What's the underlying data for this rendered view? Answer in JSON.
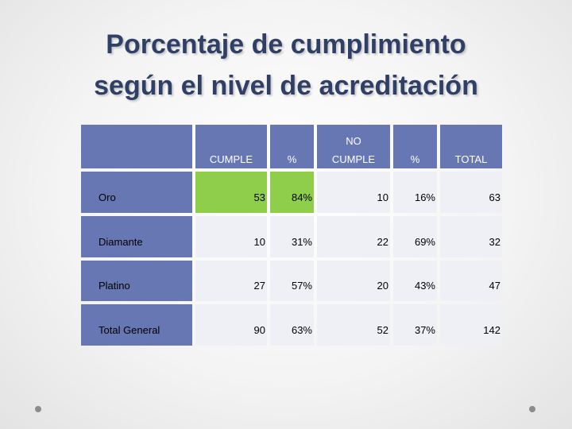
{
  "slide": {
    "title_line1": "Porcentaje de cumplimiento",
    "title_line2": "según el nivel de acreditación"
  },
  "table": {
    "header_top": "NO",
    "headers": [
      "CUMPLE",
      "%",
      "CUMPLE",
      "%",
      "TOTAL"
    ],
    "rows": [
      {
        "label": "Oro",
        "cumple": "53",
        "pct_cumple": "84%",
        "no_cumple": "10",
        "pct_no_cumple": "16%",
        "total": "63"
      },
      {
        "label": "Diamante",
        "cumple": "10",
        "pct_cumple": "31%",
        "no_cumple": "22",
        "pct_no_cumple": "69%",
        "total": "32"
      },
      {
        "label": "Platino",
        "cumple": "27",
        "pct_cumple": "57%",
        "no_cumple": "20",
        "pct_no_cumple": "43%",
        "total": "47"
      },
      {
        "label": "Total General",
        "cumple": "90",
        "pct_cumple": "63%",
        "no_cumple": "52",
        "pct_no_cumple": "37%",
        "total": "142"
      }
    ]
  },
  "colors": {
    "title": "#2f3f66",
    "header_blue": "#6777b4",
    "highlight_green": "#8fce4b",
    "cell_light": "#eef0f5"
  }
}
